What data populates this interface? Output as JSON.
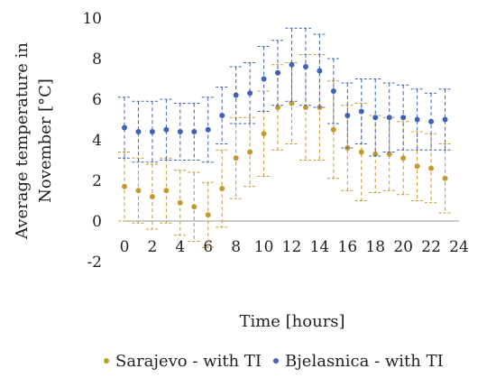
{
  "chart_data": {
    "type": "scatter",
    "title": "",
    "xlabel": "Time [hours]",
    "ylabel_lines": [
      "Average temperature in",
      "November [°C]"
    ],
    "xlim": [
      0,
      24
    ],
    "ylim": [
      -2,
      10
    ],
    "x_ticks": [
      "0",
      "2",
      "4",
      "6",
      "8",
      "10",
      "12",
      "14",
      "16",
      "18",
      "20",
      "22",
      "24"
    ],
    "y_ticks": [
      "-2",
      "0",
      "2",
      "4",
      "6",
      "8",
      "10"
    ],
    "grid": false,
    "legend_position": "bottom",
    "x": [
      0,
      1,
      2,
      3,
      4,
      5,
      6,
      7,
      8,
      9,
      10,
      11,
      12,
      13,
      14,
      15,
      16,
      17,
      18,
      19,
      20,
      21,
      22,
      23
    ],
    "series": [
      {
        "name": "Sarajevo - with TI",
        "color": "#c49a2f",
        "values": [
          1.7,
          1.5,
          1.2,
          1.5,
          0.9,
          0.7,
          0.3,
          1.6,
          3.1,
          3.4,
          4.3,
          5.6,
          5.8,
          5.6,
          5.6,
          4.5,
          3.6,
          3.4,
          3.3,
          3.3,
          3.1,
          2.7,
          2.6,
          2.1
        ],
        "error": [
          1.7,
          1.6,
          1.6,
          1.6,
          1.6,
          1.7,
          1.6,
          1.9,
          2.0,
          1.7,
          2.1,
          2.1,
          2.0,
          2.6,
          2.6,
          2.4,
          2.1,
          2.4,
          1.9,
          1.8,
          1.8,
          1.7,
          1.7,
          1.7
        ]
      },
      {
        "name": "Bjelasnica - with TI",
        "color": "#3f62b8",
        "values": [
          4.6,
          4.4,
          4.4,
          4.5,
          4.4,
          4.4,
          4.5,
          5.2,
          6.2,
          6.3,
          7.0,
          7.3,
          7.7,
          7.6,
          7.4,
          6.4,
          5.2,
          5.4,
          5.1,
          5.1,
          5.1,
          5.0,
          4.9,
          5.0
        ],
        "error": [
          1.5,
          1.5,
          1.5,
          1.5,
          1.4,
          1.4,
          1.6,
          1.4,
          1.4,
          1.5,
          1.6,
          1.6,
          1.8,
          1.9,
          1.8,
          1.6,
          1.6,
          1.6,
          1.9,
          1.7,
          1.6,
          1.5,
          1.4,
          1.5
        ]
      }
    ]
  }
}
